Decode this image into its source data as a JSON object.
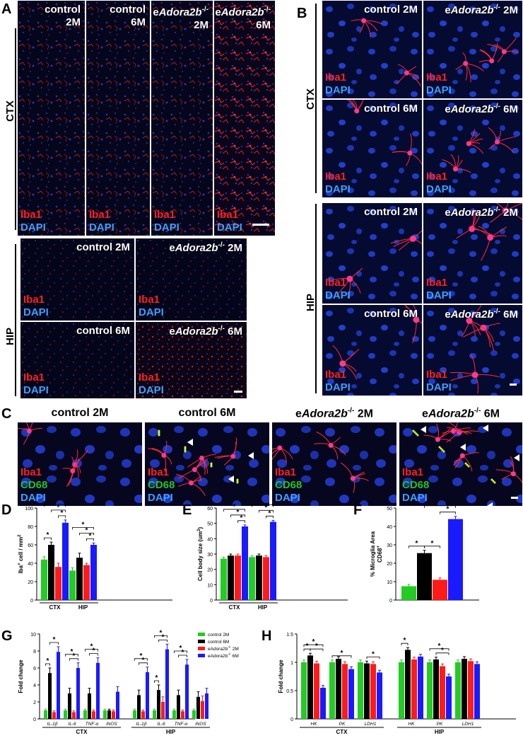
{
  "figure": {
    "panel_letters": {
      "A": "A",
      "B": "B",
      "C": "C",
      "D": "D",
      "E": "E",
      "F": "F",
      "G": "G",
      "H": "H"
    },
    "regions": {
      "ctx": "CTX",
      "hip": "HIP"
    },
    "stains": {
      "iba1": "Iba1",
      "dapi": "DAPI",
      "cd68": "CD68"
    },
    "colors": {
      "iba1": "#ff2020",
      "dapi": "#3aa0ff",
      "cd68": "#21c227",
      "control_2m": "#22cc22",
      "control_6m": "#000000",
      "eadora_2m": "#ff1a1a",
      "eadora_6m": "#1a1aff"
    },
    "panel_a": {
      "ctx_tiles": [
        {
          "line1": "control",
          "line2": "2M"
        },
        {
          "line1": "control",
          "line2": "6M"
        },
        {
          "line1": "eAdora2b",
          "sup": "-/-",
          "line2": "2M"
        },
        {
          "line1": "eAdora2b",
          "sup": "-/-",
          "line2": "6M"
        }
      ],
      "hip_tiles": [
        {
          "prefix": "control 2M"
        },
        {
          "prefix": "e",
          "gene": "Adora2b",
          "sup": "-/-",
          "suffix": " 2M"
        },
        {
          "prefix": "control 6M"
        },
        {
          "prefix": "e",
          "gene": "Adora2b",
          "sup": "-/-",
          "suffix": " 6M"
        }
      ]
    },
    "panel_b": {
      "tiles": [
        {
          "prefix": "control 2M"
        },
        {
          "prefix": "e",
          "gene": "Adora2b",
          "sup": "-/-",
          "suffix": " 2M"
        },
        {
          "prefix": "control 6M"
        },
        {
          "prefix": "e",
          "gene": "Adora2b",
          "sup": "-/-",
          "suffix": " 6M"
        }
      ]
    },
    "panel_c": {
      "titles": [
        {
          "prefix": "control 2M"
        },
        {
          "prefix": "control 6M"
        },
        {
          "prefix": "e",
          "gene": "Adora2b",
          "sup": "-/-",
          "suffix": " 2M"
        },
        {
          "prefix": "e",
          "gene": "Adora2b",
          "sup": "-/-",
          "suffix": " 6M"
        }
      ]
    },
    "significance": "*"
  },
  "chart_data": [
    {
      "id": "D",
      "type": "bar",
      "ylabel_parts": {
        "a": "Iba",
        "sup": "+",
        "b": " cell / mm",
        "sup2": "2"
      },
      "ylim": [
        0,
        100
      ],
      "yticks": [
        0,
        20,
        40,
        60,
        80,
        100
      ],
      "groups": [
        "CTX",
        "HIP"
      ],
      "series": [
        {
          "name": "control 2M",
          "values": [
            44,
            32
          ],
          "err": [
            3,
            3
          ]
        },
        {
          "name": "control 6M",
          "values": [
            60,
            46
          ],
          "err": [
            3,
            5
          ]
        },
        {
          "name": "eAdora2b-/- 2M",
          "values": [
            36,
            38
          ],
          "err": [
            4,
            2
          ]
        },
        {
          "name": "eAdora2b-/- 6M",
          "values": [
            84,
            60
          ],
          "err": [
            3,
            2
          ]
        }
      ]
    },
    {
      "id": "E",
      "type": "bar",
      "ylabel_parts": {
        "a": "Cell body size (um",
        "sup": "2",
        "b": ")"
      },
      "ylim": [
        0,
        60
      ],
      "yticks": [
        0,
        10,
        20,
        30,
        40,
        50,
        60
      ],
      "groups": [
        "CTX",
        "HIP"
      ],
      "series": [
        {
          "name": "control 2M",
          "values": [
            27,
            28
          ],
          "err": [
            1,
            1
          ]
        },
        {
          "name": "control 6M",
          "values": [
            29,
            29
          ],
          "err": [
            1,
            1
          ]
        },
        {
          "name": "eAdora2b-/- 2M",
          "values": [
            29,
            28
          ],
          "err": [
            1,
            1
          ]
        },
        {
          "name": "eAdora2b-/- 6M",
          "values": [
            48,
            51
          ],
          "err": [
            1,
            1
          ]
        }
      ]
    },
    {
      "id": "F",
      "type": "bar",
      "ylabel_parts": {
        "a": "% Microglia Area",
        "b": "CD68",
        "sup": "+"
      },
      "ylim": [
        0,
        50
      ],
      "yticks": [
        0,
        10,
        20,
        30,
        40,
        50
      ],
      "groups": [
        ""
      ],
      "series": [
        {
          "name": "control 2M",
          "values": [
            7.5
          ],
          "err": [
            1
          ]
        },
        {
          "name": "control 6M",
          "values": [
            25.5
          ],
          "err": [
            1.5
          ]
        },
        {
          "name": "eAdora2b-/- 2M",
          "values": [
            11
          ],
          "err": [
            1
          ]
        },
        {
          "name": "eAdora2b-/- 6M",
          "values": [
            44
          ],
          "err": [
            1.5
          ]
        }
      ]
    },
    {
      "id": "G",
      "type": "bar",
      "ylabel": "Fold change",
      "ylim": [
        0,
        10
      ],
      "yticks": [
        0,
        2,
        4,
        6,
        8,
        10
      ],
      "groups": [
        "CTX",
        "HIP"
      ],
      "categories": [
        "IL-1β",
        "IL-6",
        "TNF-α",
        "iNOS",
        "IL-1β",
        "IL-6",
        "TNF-α",
        "iNOS"
      ],
      "series": [
        {
          "name": "control 2M",
          "values": [
            1,
            1,
            1,
            1,
            1,
            1,
            1,
            1
          ]
        },
        {
          "name": "control 6M",
          "values": [
            5.4,
            3.0,
            3.0,
            1.0,
            2.8,
            3.4,
            2.8,
            2.6
          ]
        },
        {
          "name": "eAdora2b-/- 2M",
          "values": [
            0.8,
            0.8,
            0.9,
            0.9,
            0.9,
            2.0,
            0.9,
            2.1
          ]
        },
        {
          "name": "eAdora2b-/- 6M",
          "values": [
            7.9,
            6.0,
            6.6,
            3.2,
            5.5,
            8.2,
            6.4,
            3.0
          ]
        }
      ],
      "legend": [
        {
          "text": "control 2M"
        },
        {
          "text": "control 6M"
        },
        {
          "prefix": "eAdora2b",
          "sup": "-/-",
          "suffix": " 2M"
        },
        {
          "prefix": "eAdora2b",
          "sup": "-/-",
          "suffix": " 6M"
        }
      ]
    },
    {
      "id": "H",
      "type": "bar",
      "ylabel": "Fold change",
      "ylim": [
        0,
        1.5
      ],
      "yticks": [
        0.0,
        0.5,
        1.0,
        1.5
      ],
      "groups": [
        "CTX",
        "HIP"
      ],
      "categories": [
        "HK",
        "PK",
        "LDH1",
        "HK",
        "PK",
        "LDH1"
      ],
      "series": [
        {
          "name": "control 2M",
          "values": [
            1.0,
            1.0,
            1.0,
            1.0,
            1.0,
            1.0
          ]
        },
        {
          "name": "control 6M",
          "values": [
            1.12,
            1.06,
            0.98,
            1.22,
            1.05,
            1.06
          ]
        },
        {
          "name": "eAdora2b-/- 2M",
          "values": [
            0.98,
            0.97,
            0.97,
            1.05,
            0.93,
            1.02
          ]
        },
        {
          "name": "eAdora2b-/- 6M",
          "values": [
            0.55,
            0.88,
            0.82,
            1.1,
            0.75,
            0.97
          ]
        }
      ]
    }
  ]
}
